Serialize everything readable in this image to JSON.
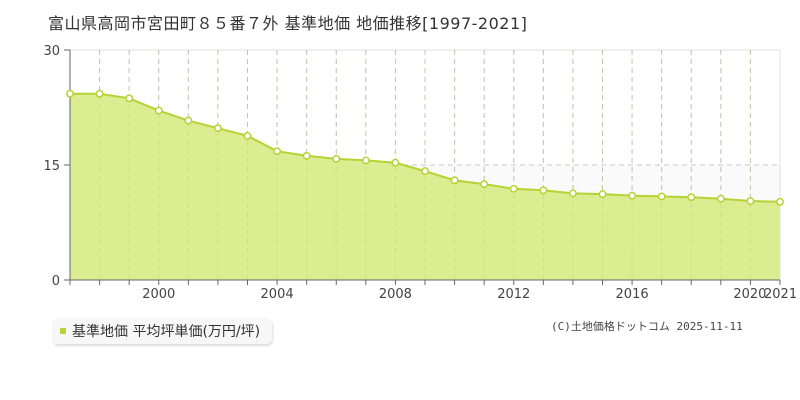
{
  "title": "富山県高岡市宮田町８５番７外 基準地価 地価推移[1997-2021]",
  "legend": {
    "label": "基準地価 平均坪単価(万円/坪)",
    "color": "#b5d334"
  },
  "copyright": "(C)土地価格ドットコム 2025-11-11",
  "colors": {
    "fill": "#dbec91",
    "line": "#b5d334",
    "marker_fill": "#ffffff",
    "grid": "#c8c8c8",
    "axis": "#666666"
  },
  "axis": {
    "y_ticks": [
      "0",
      "15",
      "30"
    ],
    "x_ticks": [
      "2000",
      "2004",
      "2008",
      "2012",
      "2016",
      "2020",
      "2021"
    ]
  },
  "chart_data": {
    "type": "area",
    "title": "富山県高岡市宮田町８５番７外 基準地価 地価推移[1997-2021]",
    "xlabel": "",
    "ylabel": "",
    "ylim": [
      0,
      30
    ],
    "xlim": [
      1997,
      2021
    ],
    "grid": true,
    "legend_position": "bottom-left",
    "x": [
      1997,
      1998,
      1999,
      2000,
      2001,
      2002,
      2003,
      2004,
      2005,
      2006,
      2007,
      2008,
      2009,
      2010,
      2011,
      2012,
      2013,
      2014,
      2015,
      2016,
      2017,
      2018,
      2019,
      2020,
      2021
    ],
    "series": [
      {
        "name": "基準地価 平均坪単価(万円/坪)",
        "values": [
          24.3,
          24.3,
          23.7,
          22.1,
          20.8,
          19.8,
          18.8,
          16.8,
          16.2,
          15.8,
          15.6,
          15.3,
          14.2,
          13.0,
          12.5,
          11.9,
          11.7,
          11.3,
          11.2,
          11.0,
          10.9,
          10.8,
          10.6,
          10.3,
          10.2
        ]
      }
    ],
    "x_tick_labels": [
      "2000",
      "2004",
      "2008",
      "2012",
      "2016",
      "2020",
      "2021"
    ],
    "y_tick_labels": [
      "0",
      "15",
      "30"
    ]
  }
}
